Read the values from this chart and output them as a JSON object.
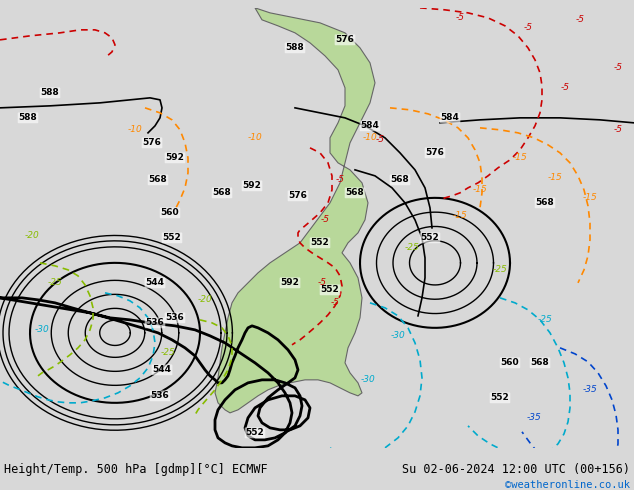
{
  "title_left": "Height/Temp. 500 hPa [gdmp][°C] ECMWF",
  "title_right": "Su 02-06-2024 12:00 UTC (00+156)",
  "credit": "©weatheronline.co.uk",
  "bg_color": "#d8d8d8",
  "land_color": "#ccddaa",
  "land_color2": "#aaccaa",
  "map_bg": "#e8e8e8",
  "bottom_bar_color": "#f0f0f0",
  "title_fontsize": 9,
  "credit_color": "#0066cc",
  "fig_width": 6.34,
  "fig_height": 4.9,
  "dpi": 100
}
